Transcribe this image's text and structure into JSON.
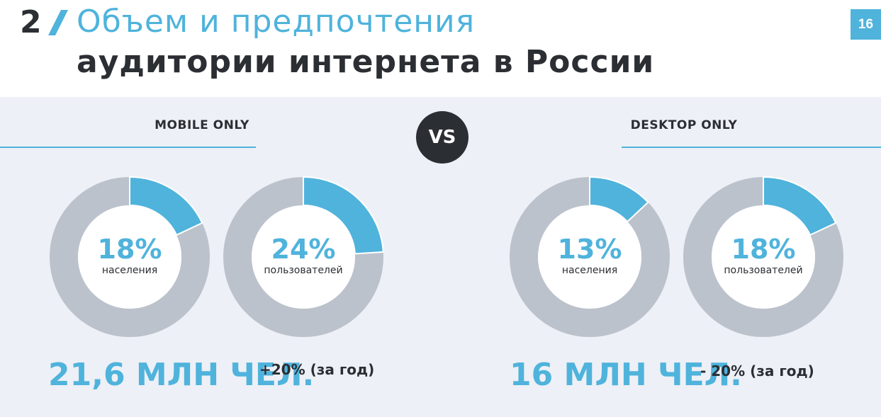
{
  "header": {
    "number": "2",
    "title_line1": "Объем и предпочтения",
    "title_line2": "аудитории интернета в России"
  },
  "page_number": "16",
  "vs_label": "VS",
  "segments": [
    {
      "label": "MOBILE ONLY",
      "total": "21,6 МЛН ЧЕЛ.",
      "change": "+20% (за год)"
    },
    {
      "label": "DESKTOP ONLY",
      "total": "16 МЛН ЧЕЛ.",
      "change": "- 20% (за год)"
    }
  ],
  "colors": {
    "accent": "#4fb3dc",
    "ring": "#bcc2cc",
    "dark": "#2b2e33",
    "panel": "#edf0f6"
  },
  "chart_data": [
    {
      "type": "pie",
      "segment": "MOBILE ONLY",
      "value": 18,
      "value_label": "18%",
      "caption": "населения"
    },
    {
      "type": "pie",
      "segment": "MOBILE ONLY",
      "value": 24,
      "value_label": "24%",
      "caption": "пользователей"
    },
    {
      "type": "pie",
      "segment": "DESKTOP ONLY",
      "value": 13,
      "value_label": "13%",
      "caption": "населения"
    },
    {
      "type": "pie",
      "segment": "DESKTOP ONLY",
      "value": 18,
      "value_label": "18%",
      "caption": "пользователей"
    }
  ]
}
